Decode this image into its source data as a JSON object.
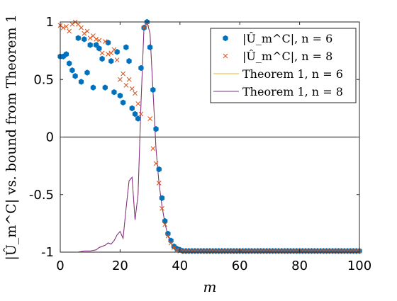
{
  "chart_data": {
    "type": "scatter",
    "xlabel": "m",
    "ylabel": "|Û_m^C| vs. bound from Theorem 1",
    "xlim": [
      0,
      100
    ],
    "ylim": [
      -1,
      1
    ],
    "xticks": [
      "0",
      "20",
      "40",
      "60",
      "80",
      "100"
    ],
    "yticks": [
      "-1",
      "-0.5",
      "0",
      "0.5",
      "1"
    ],
    "xtick_values": [
      0,
      20,
      40,
      60,
      80,
      100
    ],
    "ytick_values": [
      -1,
      -0.5,
      0,
      0.5,
      1
    ],
    "reference_line_y": 0,
    "grid": false,
    "legend_position": "top-right",
    "colors": {
      "n6_markers": "#0072BD",
      "n8_markers": "#D95319",
      "bound_n6": "#EDB120",
      "bound_n8": "#7E2F8E",
      "zero_line": "#000000"
    },
    "series": [
      {
        "name": "|Û_m^C|,  n = 6",
        "marker": "hexagon",
        "x": [
          0,
          1,
          2,
          3,
          4,
          5,
          6,
          7,
          8,
          9,
          10,
          11,
          12,
          13,
          14,
          15,
          16,
          17,
          18,
          19,
          20,
          21,
          22,
          23,
          24,
          25,
          26,
          27,
          28,
          29,
          30,
          31,
          32,
          33,
          34,
          35,
          36,
          37,
          38,
          39,
          40,
          41,
          42,
          43,
          44,
          45,
          46,
          47,
          48,
          49,
          50,
          51,
          52,
          53,
          54,
          55,
          56,
          57,
          58,
          59,
          60,
          61,
          62,
          63,
          64,
          65,
          66,
          67,
          68,
          69,
          70,
          71,
          72,
          73,
          74,
          75,
          76,
          77,
          78,
          79,
          80,
          81,
          82,
          83,
          84,
          85,
          86,
          87,
          88,
          89,
          90,
          91,
          92,
          93,
          94,
          95,
          96,
          97,
          98,
          99,
          100
        ],
        "y": [
          0.7,
          0.7,
          0.72,
          0.64,
          0.58,
          0.53,
          0.86,
          0.48,
          0.85,
          0.56,
          0.8,
          0.43,
          0.8,
          0.77,
          0.68,
          0.43,
          0.82,
          0.66,
          0.39,
          0.74,
          0.36,
          0.3,
          0.78,
          0.66,
          0.25,
          0.2,
          0.16,
          0.6,
          0.95,
          1.0,
          0.78,
          0.41,
          0.07,
          -0.28,
          -0.53,
          -0.73,
          -0.84,
          -0.9,
          -0.95,
          -0.97,
          -0.98,
          -0.99,
          -0.99,
          -0.99,
          -0.99,
          -0.99,
          -0.99,
          -0.99,
          -0.99,
          -0.99,
          -0.99,
          -0.99,
          -0.99,
          -0.99,
          -0.99,
          -0.99,
          -0.99,
          -0.99,
          -0.99,
          -0.99,
          -0.99,
          -0.99,
          -0.99,
          -0.99,
          -0.99,
          -0.99,
          -0.99,
          -0.99,
          -0.99,
          -0.99,
          -0.99,
          -0.99,
          -0.99,
          -0.99,
          -0.99,
          -0.99,
          -0.99,
          -0.99,
          -0.99,
          -0.99,
          -0.99,
          -0.99,
          -0.99,
          -0.99,
          -0.99,
          -0.99,
          -0.99,
          -0.99,
          -0.99,
          -0.99,
          -0.99,
          -0.99,
          -0.99,
          -0.99,
          -0.99,
          -0.99,
          -0.99,
          -0.99,
          -0.99,
          -0.99,
          -0.99
        ]
      },
      {
        "name": "|Û_m^C|,  n = 8",
        "marker": "x",
        "x": [
          0,
          1,
          2,
          3,
          4,
          5,
          6,
          7,
          8,
          9,
          10,
          11,
          12,
          13,
          14,
          15,
          16,
          17,
          18,
          19,
          20,
          21,
          22,
          23,
          24,
          25,
          26,
          27,
          28,
          29,
          30,
          31,
          32,
          33,
          34,
          35,
          36,
          37,
          38,
          39,
          40,
          41,
          42,
          43,
          44,
          45,
          46,
          47,
          48,
          49,
          50,
          51,
          52,
          53,
          54,
          55,
          56,
          57,
          58,
          59,
          60,
          61,
          62,
          63,
          64,
          65,
          66,
          67,
          68,
          69,
          70,
          71,
          72,
          73,
          74,
          75,
          76,
          77,
          78,
          79,
          80,
          81,
          82,
          83,
          84,
          85,
          86,
          87,
          88,
          89,
          90,
          91,
          92,
          93,
          94,
          95,
          96,
          97,
          98,
          99,
          100
        ],
        "y": [
          0.97,
          0.95,
          0.96,
          0.92,
          0.98,
          1.0,
          0.98,
          0.95,
          0.9,
          0.92,
          0.86,
          0.88,
          0.85,
          0.84,
          0.73,
          0.83,
          0.72,
          0.73,
          0.76,
          0.67,
          0.5,
          0.55,
          0.45,
          0.5,
          0.42,
          0.38,
          0.29,
          0.2,
          0.95,
          0.98,
          0.16,
          -0.1,
          -0.23,
          -0.4,
          -0.62,
          -0.76,
          -0.86,
          -0.92,
          -0.96,
          -0.98,
          -0.99,
          -0.99,
          -0.99,
          -0.99,
          -0.99,
          -0.99,
          -0.99,
          -0.99,
          -0.99,
          -0.99,
          -0.99,
          -0.99,
          -0.99,
          -0.99,
          -0.99,
          -0.99,
          -0.99,
          -0.99,
          -0.99,
          -0.99,
          -0.99,
          -0.99,
          -0.99,
          -0.99,
          -0.99,
          -0.99,
          -0.99,
          -0.99,
          -0.99,
          -0.99,
          -0.99,
          -0.99,
          -0.99,
          -0.99,
          -0.99,
          -0.99,
          -0.99,
          -0.99,
          -0.99,
          -0.99,
          -0.99,
          -0.99,
          -0.99,
          -0.99,
          -0.99,
          -0.99,
          -0.99,
          -0.99,
          -0.99,
          -0.99,
          -0.99,
          -0.99,
          -0.99,
          -0.99,
          -0.99,
          -0.99,
          -0.99,
          -0.99,
          -0.99,
          -0.99,
          -0.99
        ]
      },
      {
        "name": "Theorem 1, n = 6",
        "marker": "line",
        "x": [
          0,
          6,
          8,
          10,
          12,
          13,
          14,
          15,
          16,
          17,
          18,
          19,
          20,
          21,
          22,
          23,
          24,
          25,
          26,
          27,
          28,
          29,
          30,
          31,
          32,
          33,
          34,
          35,
          36,
          37,
          38,
          39,
          40,
          42,
          45,
          50,
          60,
          70,
          80,
          90,
          100
        ],
        "y": [
          -1,
          -1,
          -0.99,
          -0.99,
          -0.98,
          -0.96,
          -0.95,
          -0.94,
          -0.92,
          -0.93,
          -0.9,
          -0.85,
          -0.82,
          -0.88,
          -0.62,
          -0.38,
          -0.35,
          -0.72,
          -0.5,
          0.3,
          0.96,
          1.0,
          0.9,
          0.4,
          -0.1,
          -0.4,
          -0.6,
          -0.75,
          -0.86,
          -0.92,
          -0.96,
          -0.98,
          -0.99,
          -1,
          -1,
          -1,
          -1,
          -1,
          -1,
          -1,
          -1
        ]
      },
      {
        "name": "Theorem 1, n = 8",
        "marker": "line",
        "x": [
          0,
          6,
          8,
          10,
          12,
          13,
          14,
          15,
          16,
          17,
          18,
          19,
          20,
          21,
          22,
          23,
          24,
          25,
          26,
          27,
          28,
          29,
          30,
          31,
          32,
          33,
          34,
          35,
          36,
          37,
          38,
          39,
          40,
          42,
          45,
          50,
          60,
          70,
          80,
          90,
          100
        ],
        "y": [
          -1,
          -1,
          -0.99,
          -0.99,
          -0.98,
          -0.96,
          -0.95,
          -0.94,
          -0.92,
          -0.93,
          -0.9,
          -0.85,
          -0.82,
          -0.88,
          -0.62,
          -0.38,
          -0.35,
          -0.72,
          -0.5,
          0.3,
          0.96,
          1.0,
          0.9,
          0.4,
          -0.1,
          -0.4,
          -0.6,
          -0.75,
          -0.86,
          -0.92,
          -0.96,
          -0.98,
          -0.99,
          -1,
          -1,
          -1,
          -1,
          -1,
          -1,
          -1,
          -1
        ]
      }
    ]
  }
}
